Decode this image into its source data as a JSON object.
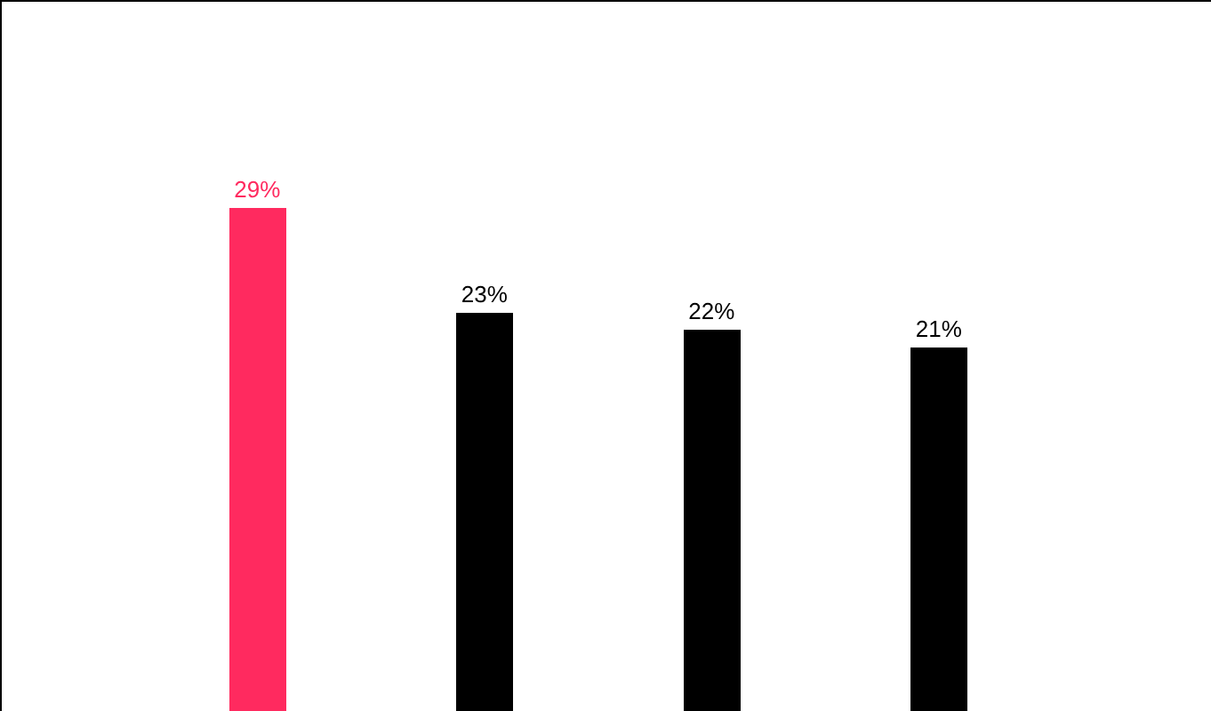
{
  "chart_data": {
    "type": "bar",
    "categories": [
      null,
      null,
      null,
      null
    ],
    "values": [
      29,
      23,
      22,
      21
    ],
    "colors": [
      "#ff2a5f",
      "#000000",
      "#000000",
      "#000000"
    ],
    "value_labels": [
      "29%",
      "23%",
      "22%",
      "21%"
    ]
  }
}
